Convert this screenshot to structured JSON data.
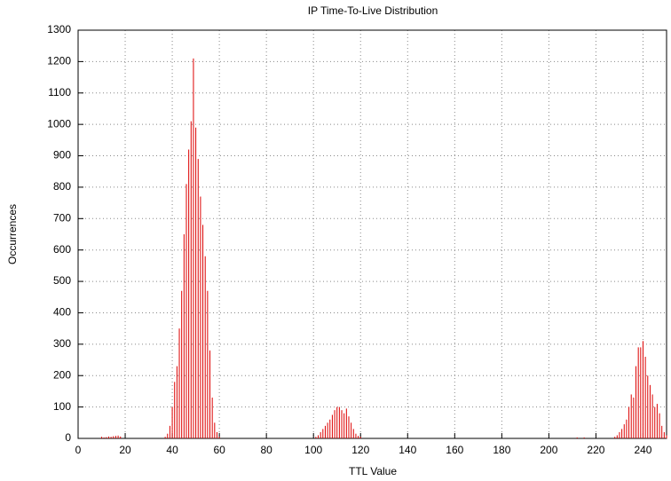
{
  "chart_data": {
    "type": "impulse",
    "title": "IP Time-To-Live Distribution",
    "x_label": "TTL Value",
    "y_label": "Occurrences",
    "x": [
      10,
      11,
      12,
      13,
      14,
      15,
      16,
      17,
      18,
      37,
      38,
      39,
      40,
      41,
      42,
      43,
      44,
      45,
      46,
      47,
      48,
      49,
      50,
      51,
      52,
      53,
      54,
      55,
      56,
      57,
      58,
      59,
      60,
      101,
      102,
      103,
      104,
      105,
      106,
      107,
      108,
      109,
      110,
      111,
      112,
      113,
      114,
      115,
      116,
      117,
      118,
      119,
      120,
      212,
      215,
      228,
      229,
      230,
      231,
      232,
      233,
      234,
      235,
      236,
      237,
      238,
      239,
      240,
      241,
      242,
      243,
      244,
      245,
      246,
      247,
      248,
      249,
      250
    ],
    "values": [
      5,
      3,
      4,
      6,
      5,
      7,
      8,
      9,
      6,
      5,
      15,
      40,
      100,
      180,
      230,
      350,
      470,
      650,
      810,
      920,
      1010,
      1210,
      990,
      890,
      770,
      680,
      580,
      470,
      280,
      130,
      50,
      20,
      5,
      5,
      10,
      20,
      30,
      40,
      50,
      60,
      75,
      90,
      100,
      100,
      90,
      80,
      95,
      70,
      50,
      30,
      15,
      8,
      5,
      3,
      3,
      5,
      10,
      20,
      30,
      45,
      60,
      100,
      140,
      130,
      230,
      290,
      290,
      310,
      260,
      200,
      170,
      140,
      100,
      110,
      80,
      40,
      20,
      10
    ],
    "color": "#dd0000",
    "xlim": [
      0,
      250
    ],
    "ylim": [
      0,
      1300
    ],
    "xticks": [
      0,
      20,
      40,
      60,
      80,
      100,
      120,
      140,
      160,
      180,
      200,
      220,
      240
    ],
    "yticks": [
      0,
      100,
      200,
      300,
      400,
      500,
      600,
      700,
      800,
      900,
      1000,
      1100,
      1200,
      1300
    ],
    "grid": true
  }
}
